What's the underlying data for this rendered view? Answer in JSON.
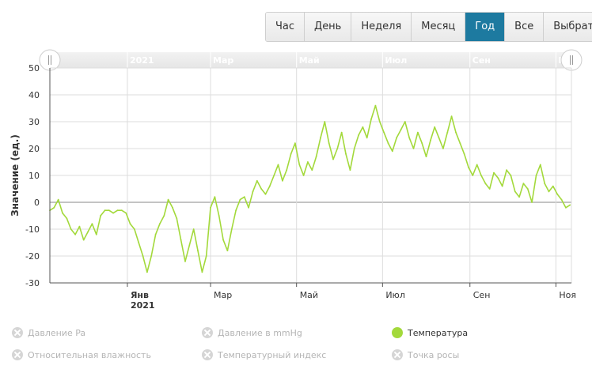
{
  "range_buttons": [
    {
      "label": "Час",
      "active": false
    },
    {
      "label": "День",
      "active": false
    },
    {
      "label": "Неделя",
      "active": false
    },
    {
      "label": "Месяц",
      "active": false
    },
    {
      "label": "Год",
      "active": true
    },
    {
      "label": "Все",
      "active": false
    },
    {
      "label": "Выбрать",
      "active": false
    }
  ],
  "navigator_labels": [
    "2021",
    "Мар",
    "Май",
    "Июл",
    "Сен",
    "Ноя"
  ],
  "legend": [
    {
      "label": "Давление Pa",
      "enabled": false
    },
    {
      "label": "Давление в mmHg",
      "enabled": false
    },
    {
      "label": "Температура",
      "enabled": true
    },
    {
      "label": "Относительная влажность",
      "enabled": false
    },
    {
      "label": "Температурный индекс",
      "enabled": false
    },
    {
      "label": "Точка росы",
      "enabled": false
    }
  ],
  "colors": {
    "series": "#a3d93b",
    "active_button": "#1d7aa0",
    "grid": "#dddddd"
  },
  "chart_data": {
    "type": "line",
    "ylabel": "Значение (ед.)",
    "ylim": [
      -30,
      50
    ],
    "y_ticks": [
      50,
      40,
      30,
      20,
      10,
      0,
      -10,
      -20,
      -30
    ],
    "x_range": [
      "2020-11-07",
      "2021-11-12"
    ],
    "x_ticks": [
      {
        "date": "2021-01-01",
        "label": "Янв",
        "sublabel": "2021"
      },
      {
        "date": "2021-03-01",
        "label": "Мар",
        "sublabel": ""
      },
      {
        "date": "2021-05-01",
        "label": "Май",
        "sublabel": ""
      },
      {
        "date": "2021-07-01",
        "label": "Июл",
        "sublabel": ""
      },
      {
        "date": "2021-09-01",
        "label": "Сен",
        "sublabel": ""
      },
      {
        "date": "2021-11-01",
        "label": "Ноя",
        "sublabel": ""
      }
    ],
    "series": [
      {
        "name": "Температура",
        "color": "#a3d93b",
        "points": [
          [
            "2020-11-07",
            -3
          ],
          [
            "2020-11-10",
            -2
          ],
          [
            "2020-11-13",
            1
          ],
          [
            "2020-11-16",
            -4
          ],
          [
            "2020-11-19",
            -6
          ],
          [
            "2020-11-22",
            -10
          ],
          [
            "2020-11-25",
            -12
          ],
          [
            "2020-11-28",
            -9
          ],
          [
            "2020-12-01",
            -14
          ],
          [
            "2020-12-04",
            -11
          ],
          [
            "2020-12-07",
            -8
          ],
          [
            "2020-12-10",
            -12
          ],
          [
            "2020-12-13",
            -5
          ],
          [
            "2020-12-16",
            -3
          ],
          [
            "2020-12-19",
            -3
          ],
          [
            "2020-12-22",
            -4
          ],
          [
            "2020-12-25",
            -3
          ],
          [
            "2020-12-28",
            -3
          ],
          [
            "2020-12-31",
            -4
          ],
          [
            "2021-01-03",
            -8
          ],
          [
            "2021-01-06",
            -10
          ],
          [
            "2021-01-09",
            -15
          ],
          [
            "2021-01-12",
            -20
          ],
          [
            "2021-01-15",
            -26
          ],
          [
            "2021-01-18",
            -20
          ],
          [
            "2021-01-21",
            -12
          ],
          [
            "2021-01-24",
            -8
          ],
          [
            "2021-01-27",
            -5
          ],
          [
            "2021-01-30",
            1
          ],
          [
            "2021-02-02",
            -2
          ],
          [
            "2021-02-05",
            -6
          ],
          [
            "2021-02-08",
            -14
          ],
          [
            "2021-02-11",
            -22
          ],
          [
            "2021-02-14",
            -16
          ],
          [
            "2021-02-17",
            -10
          ],
          [
            "2021-02-20",
            -18
          ],
          [
            "2021-02-23",
            -26
          ],
          [
            "2021-02-26",
            -20
          ],
          [
            "2021-03-01",
            -2
          ],
          [
            "2021-03-04",
            2
          ],
          [
            "2021-03-07",
            -5
          ],
          [
            "2021-03-10",
            -14
          ],
          [
            "2021-03-13",
            -18
          ],
          [
            "2021-03-16",
            -10
          ],
          [
            "2021-03-19",
            -3
          ],
          [
            "2021-03-22",
            1
          ],
          [
            "2021-03-25",
            2
          ],
          [
            "2021-03-28",
            -2
          ],
          [
            "2021-03-31",
            4
          ],
          [
            "2021-04-03",
            8
          ],
          [
            "2021-04-06",
            5
          ],
          [
            "2021-04-09",
            3
          ],
          [
            "2021-04-12",
            6
          ],
          [
            "2021-04-15",
            10
          ],
          [
            "2021-04-18",
            14
          ],
          [
            "2021-04-21",
            8
          ],
          [
            "2021-04-24",
            12
          ],
          [
            "2021-04-27",
            18
          ],
          [
            "2021-04-30",
            22
          ],
          [
            "2021-05-03",
            14
          ],
          [
            "2021-05-06",
            10
          ],
          [
            "2021-05-09",
            15
          ],
          [
            "2021-05-12",
            12
          ],
          [
            "2021-05-15",
            17
          ],
          [
            "2021-05-18",
            24
          ],
          [
            "2021-05-21",
            30
          ],
          [
            "2021-05-24",
            22
          ],
          [
            "2021-05-27",
            16
          ],
          [
            "2021-05-30",
            20
          ],
          [
            "2021-06-02",
            26
          ],
          [
            "2021-06-05",
            18
          ],
          [
            "2021-06-08",
            12
          ],
          [
            "2021-06-11",
            20
          ],
          [
            "2021-06-14",
            25
          ],
          [
            "2021-06-17",
            28
          ],
          [
            "2021-06-20",
            24
          ],
          [
            "2021-06-23",
            31
          ],
          [
            "2021-06-26",
            36
          ],
          [
            "2021-06-29",
            30
          ],
          [
            "2021-07-02",
            26
          ],
          [
            "2021-07-05",
            22
          ],
          [
            "2021-07-08",
            19
          ],
          [
            "2021-07-11",
            24
          ],
          [
            "2021-07-14",
            27
          ],
          [
            "2021-07-17",
            30
          ],
          [
            "2021-07-20",
            24
          ],
          [
            "2021-07-23",
            20
          ],
          [
            "2021-07-26",
            26
          ],
          [
            "2021-07-29",
            22
          ],
          [
            "2021-08-01",
            17
          ],
          [
            "2021-08-04",
            23
          ],
          [
            "2021-08-07",
            28
          ],
          [
            "2021-08-10",
            24
          ],
          [
            "2021-08-13",
            20
          ],
          [
            "2021-08-16",
            26
          ],
          [
            "2021-08-19",
            32
          ],
          [
            "2021-08-22",
            26
          ],
          [
            "2021-08-25",
            22
          ],
          [
            "2021-08-28",
            18
          ],
          [
            "2021-08-31",
            13
          ],
          [
            "2021-09-03",
            10
          ],
          [
            "2021-09-06",
            14
          ],
          [
            "2021-09-09",
            10
          ],
          [
            "2021-09-12",
            7
          ],
          [
            "2021-09-15",
            5
          ],
          [
            "2021-09-18",
            11
          ],
          [
            "2021-09-21",
            9
          ],
          [
            "2021-09-24",
            6
          ],
          [
            "2021-09-27",
            12
          ],
          [
            "2021-09-30",
            10
          ],
          [
            "2021-10-03",
            4
          ],
          [
            "2021-10-06",
            2
          ],
          [
            "2021-10-09",
            7
          ],
          [
            "2021-10-12",
            5
          ],
          [
            "2021-10-15",
            0
          ],
          [
            "2021-10-18",
            10
          ],
          [
            "2021-10-21",
            14
          ],
          [
            "2021-10-24",
            7
          ],
          [
            "2021-10-27",
            4
          ],
          [
            "2021-10-30",
            6
          ],
          [
            "2021-11-02",
            3
          ],
          [
            "2021-11-05",
            1
          ],
          [
            "2021-11-08",
            -2
          ],
          [
            "2021-11-11",
            -1
          ]
        ]
      }
    ]
  }
}
